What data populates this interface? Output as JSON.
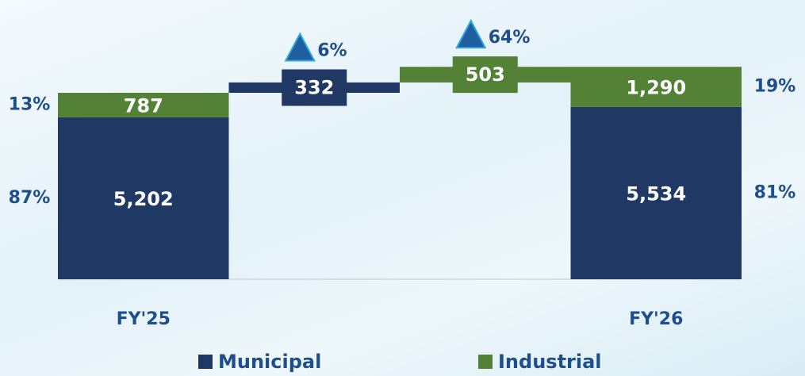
{
  "chart_data": {
    "type": "waterfall",
    "categories": [
      "FY'25",
      null,
      null,
      "FY'26"
    ],
    "series": [
      {
        "name": "Municipal",
        "color": "#1f3864",
        "values": [
          5202,
          332,
          null,
          5534
        ],
        "value_labels": [
          "5,202",
          "332",
          null,
          "5,534"
        ],
        "share_labels": [
          "87%",
          null,
          null,
          "81%"
        ]
      },
      {
        "name": "Industrial",
        "color": "#538135",
        "values": [
          787,
          null,
          503,
          1290
        ],
        "value_labels": [
          "787",
          null,
          "503",
          "1,290"
        ],
        "share_labels": [
          "13%",
          null,
          null,
          "19%"
        ]
      }
    ],
    "growth_labels": [
      null,
      "6%",
      "64%",
      null
    ],
    "legend": "bottom"
  }
}
